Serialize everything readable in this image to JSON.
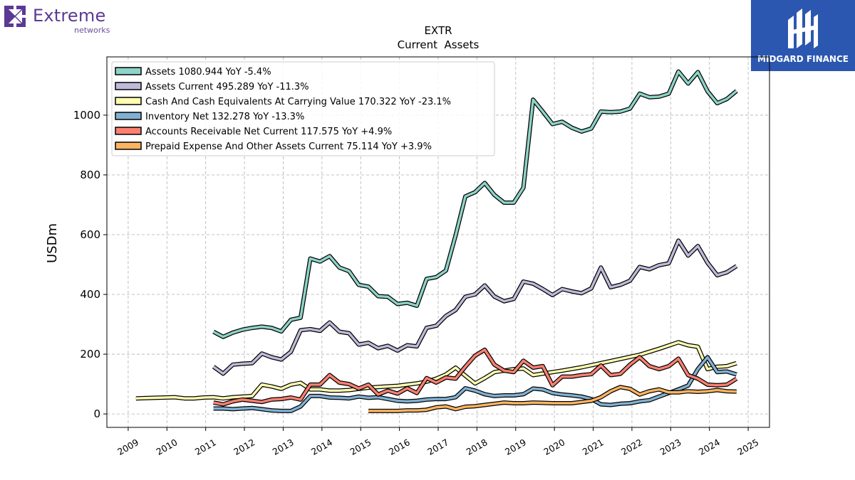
{
  "branding": {
    "left_logo_text": "Extreme",
    "left_logo_sub": "networks",
    "left_logo_color": "#5b3a95",
    "right_logo_text": "MIDGARD FINANCE",
    "right_logo_bg": "#2b57b0"
  },
  "chart_data": {
    "type": "line",
    "title": "EXTR",
    "subtitle": "Current  Assets",
    "ylabel": "USDm",
    "xlabel": "",
    "xlim": [
      2008.7,
      2025.8
    ],
    "ylim": [
      -45,
      1195
    ],
    "yticks": [
      0,
      200,
      400,
      600,
      800,
      1000
    ],
    "xticks": [
      "2009",
      "2010",
      "2011",
      "2012",
      "2013",
      "2014",
      "2015",
      "2016",
      "2017",
      "2018",
      "2019",
      "2020",
      "2021",
      "2022",
      "2023",
      "2024",
      "2025"
    ],
    "grid": true,
    "legend_position": "top-left",
    "series": [
      {
        "name": "Assets  1080.944 YoY -5.4%",
        "color": "#8dd3c7",
        "x": [
          2011.45,
          2011.7,
          2011.95,
          2012.2,
          2012.45,
          2012.7,
          2012.95,
          2013.2,
          2013.45,
          2013.7,
          2013.95,
          2014.2,
          2014.45,
          2014.7,
          2014.95,
          2015.2,
          2015.45,
          2015.7,
          2015.95,
          2016.2,
          2016.45,
          2016.7,
          2016.95,
          2017.2,
          2017.45,
          2017.7,
          2017.95,
          2018.2,
          2018.45,
          2018.7,
          2018.95,
          2019.2,
          2019.45,
          2019.7,
          2019.95,
          2020.2,
          2020.45,
          2020.7,
          2020.95,
          2021.2,
          2021.45,
          2021.7,
          2021.95,
          2022.2,
          2022.45,
          2022.7,
          2022.95,
          2023.2,
          2023.45,
          2023.7,
          2023.95,
          2024.2,
          2024.45,
          2024.7,
          2024.95
        ],
        "y": [
          275,
          258,
          272,
          282,
          288,
          292,
          288,
          276,
          315,
          322,
          520,
          510,
          528,
          490,
          478,
          432,
          426,
          394,
          392,
          368,
          372,
          362,
          452,
          458,
          480,
          598,
          728,
          742,
          773,
          733,
          707,
          707,
          757,
          1052,
          1012,
          970,
          978,
          958,
          945,
          955,
          1012,
          1010,
          1012,
          1022,
          1072,
          1060,
          1062,
          1072,
          1146,
          1106,
          1144,
          1080,
          1040,
          1054,
          1081
        ]
      },
      {
        "name": "Assets Current  495.289 YoY -11.3%",
        "color": "#bebada",
        "x": [
          2011.45,
          2011.7,
          2011.95,
          2012.2,
          2012.45,
          2012.7,
          2012.95,
          2013.2,
          2013.45,
          2013.7,
          2013.95,
          2014.2,
          2014.45,
          2014.7,
          2014.95,
          2015.2,
          2015.45,
          2015.7,
          2015.95,
          2016.2,
          2016.45,
          2016.7,
          2016.95,
          2017.2,
          2017.45,
          2017.7,
          2017.95,
          2018.2,
          2018.45,
          2018.7,
          2018.95,
          2019.2,
          2019.45,
          2019.7,
          2019.95,
          2020.2,
          2020.45,
          2020.7,
          2020.95,
          2021.2,
          2021.45,
          2021.7,
          2021.95,
          2022.2,
          2022.45,
          2022.7,
          2022.95,
          2023.2,
          2023.45,
          2023.7,
          2023.95,
          2024.2,
          2024.45,
          2024.7,
          2024.95
        ],
        "y": [
          158,
          135,
          165,
          168,
          170,
          202,
          190,
          182,
          208,
          280,
          284,
          278,
          306,
          275,
          270,
          232,
          238,
          220,
          228,
          212,
          230,
          226,
          288,
          295,
          328,
          348,
          392,
          400,
          430,
          393,
          377,
          385,
          443,
          436,
          418,
          398,
          418,
          410,
          404,
          420,
          490,
          424,
          432,
          446,
          492,
          484,
          498,
          504,
          580,
          530,
          562,
          506,
          464,
          474,
          495
        ]
      },
      {
        "name": "Cash And Cash Equivalents At Carrying Value  170.322 YoY -23.1%",
        "color": "#ffffb3",
        "x": [
          2009.45,
          2009.95,
          2010.45,
          2010.7,
          2010.95,
          2011.2,
          2011.45,
          2011.7,
          2011.95,
          2012.2,
          2012.45,
          2012.7,
          2012.95,
          2013.2,
          2013.45,
          2013.7,
          2013.95,
          2014.2,
          2014.45,
          2014.7,
          2014.95,
          2015.2,
          2015.45,
          2015.7,
          2015.95,
          2016.2,
          2016.45,
          2016.7,
          2016.95,
          2017.2,
          2017.45,
          2017.7,
          2017.95,
          2018.2,
          2018.45,
          2018.7,
          2018.95,
          2019.2,
          2019.45,
          2019.7,
          2019.95,
          2020.45,
          2020.95,
          2021.45,
          2021.95,
          2022.45,
          2022.95,
          2023.45,
          2023.7,
          2023.95,
          2024.2,
          2024.45,
          2024.7,
          2024.95
        ],
        "y": [
          52,
          54,
          56,
          52,
          52,
          55,
          56,
          52,
          56,
          58,
          60,
          98,
          92,
          84,
          98,
          104,
          82,
          82,
          78,
          78,
          80,
          84,
          88,
          90,
          92,
          94,
          98,
          102,
          108,
          118,
          132,
          155,
          128,
          102,
          120,
          140,
          145,
          150,
          152,
          130,
          135,
          145,
          156,
          170,
          184,
          198,
          218,
          240,
          230,
          225,
          150,
          158,
          160,
          170
        ]
      },
      {
        "name": "Inventory Net  132.278 YoY -13.3%",
        "color": "#80b1d3",
        "x": [
          2011.45,
          2011.7,
          2011.95,
          2012.2,
          2012.45,
          2012.7,
          2012.95,
          2013.2,
          2013.45,
          2013.7,
          2013.95,
          2014.2,
          2014.45,
          2014.7,
          2014.95,
          2015.2,
          2015.45,
          2015.7,
          2015.95,
          2016.2,
          2016.45,
          2016.7,
          2016.95,
          2017.2,
          2017.45,
          2017.7,
          2017.95,
          2018.2,
          2018.45,
          2018.7,
          2018.95,
          2019.2,
          2019.45,
          2019.7,
          2019.95,
          2020.2,
          2020.45,
          2020.7,
          2020.95,
          2021.2,
          2021.45,
          2021.7,
          2021.95,
          2022.2,
          2022.45,
          2022.7,
          2022.95,
          2023.2,
          2023.45,
          2023.7,
          2023.95,
          2024.2,
          2024.45,
          2024.7,
          2024.95
        ],
        "y": [
          18,
          18,
          16,
          18,
          20,
          16,
          12,
          10,
          10,
          25,
          60,
          60,
          55,
          54,
          52,
          58,
          54,
          56,
          50,
          44,
          42,
          44,
          48,
          50,
          50,
          56,
          86,
          78,
          66,
          60,
          62,
          62,
          66,
          85,
          82,
          70,
          65,
          62,
          58,
          50,
          32,
          30,
          34,
          36,
          42,
          46,
          58,
          70,
          82,
          95,
          150,
          190,
          140,
          142,
          132
        ]
      },
      {
        "name": "Accounts Receivable Net Current  117.575 YoY +4.9%",
        "color": "#fb8072",
        "x": [
          2011.45,
          2011.7,
          2011.95,
          2012.2,
          2012.45,
          2012.7,
          2012.95,
          2013.2,
          2013.45,
          2013.7,
          2013.95,
          2014.2,
          2014.45,
          2014.7,
          2014.95,
          2015.2,
          2015.45,
          2015.7,
          2015.95,
          2016.2,
          2016.45,
          2016.7,
          2016.95,
          2017.2,
          2017.45,
          2017.7,
          2017.95,
          2018.2,
          2018.45,
          2018.7,
          2018.95,
          2019.2,
          2019.45,
          2019.7,
          2019.95,
          2020.2,
          2020.45,
          2020.7,
          2020.95,
          2021.2,
          2021.45,
          2021.7,
          2021.95,
          2022.2,
          2022.45,
          2022.7,
          2022.95,
          2023.2,
          2023.45,
          2023.7,
          2023.95,
          2024.2,
          2024.45,
          2024.7,
          2024.95
        ],
        "y": [
          38,
          32,
          42,
          48,
          44,
          40,
          48,
          50,
          55,
          48,
          98,
          98,
          130,
          105,
          100,
          85,
          98,
          65,
          78,
          68,
          86,
          70,
          120,
          105,
          122,
          118,
          158,
          195,
          215,
          165,
          145,
          140,
          178,
          155,
          160,
          96,
          125,
          125,
          130,
          133,
          162,
          130,
          134,
          165,
          190,
          160,
          150,
          160,
          185,
          130,
          118,
          98,
          96,
          98,
          118
        ]
      },
      {
        "name": "Prepaid Expense And Other Assets Current  75.114 YoY +3.9%",
        "color": "#fdb462",
        "x": [
          2015.45,
          2015.7,
          2015.95,
          2016.2,
          2016.45,
          2016.7,
          2016.95,
          2017.2,
          2017.45,
          2017.7,
          2017.95,
          2018.2,
          2018.45,
          2018.7,
          2018.95,
          2019.2,
          2019.45,
          2019.7,
          2019.95,
          2020.2,
          2020.45,
          2020.7,
          2020.95,
          2021.2,
          2021.45,
          2021.7,
          2021.95,
          2022.2,
          2022.45,
          2022.7,
          2022.95,
          2023.2,
          2023.45,
          2023.7,
          2023.95,
          2024.2,
          2024.45,
          2024.7,
          2024.95
        ],
        "y": [
          10,
          10,
          10,
          10,
          12,
          12,
          14,
          22,
          25,
          16,
          24,
          26,
          30,
          34,
          38,
          36,
          36,
          38,
          37,
          36,
          36,
          36,
          40,
          44,
          56,
          76,
          90,
          84,
          65,
          76,
          82,
          72,
          72,
          76,
          74,
          76,
          80,
          76,
          75
        ]
      }
    ]
  }
}
